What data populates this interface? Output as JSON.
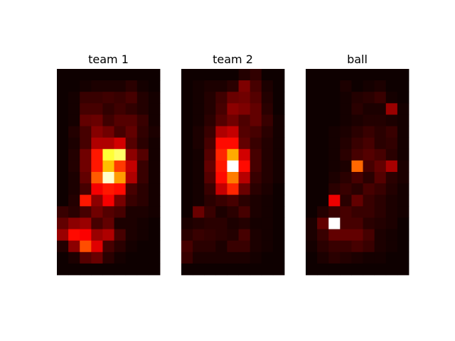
{
  "chart_data": [
    {
      "type": "heatmap",
      "title": "team 1",
      "colormap": "hot",
      "vmin": 0,
      "vmax": 1,
      "grid": false,
      "axes_visible": false,
      "values": [
        [
          0.02,
          0.02,
          0.02,
          0.02,
          0.02,
          0.02,
          0.02,
          0.02,
          0.02
        ],
        [
          0.02,
          0.02,
          0.03,
          0.04,
          0.04,
          0.04,
          0.06,
          0.03,
          0.02
        ],
        [
          0.02,
          0.03,
          0.08,
          0.08,
          0.09,
          0.08,
          0.1,
          0.05,
          0.03
        ],
        [
          0.02,
          0.03,
          0.1,
          0.1,
          0.07,
          0.09,
          0.07,
          0.05,
          0.03
        ],
        [
          0.02,
          0.03,
          0.14,
          0.15,
          0.09,
          0.12,
          0.12,
          0.08,
          0.03
        ],
        [
          0.02,
          0.05,
          0.1,
          0.19,
          0.16,
          0.1,
          0.14,
          0.07,
          0.04
        ],
        [
          0.02,
          0.04,
          0.1,
          0.25,
          0.25,
          0.3,
          0.12,
          0.06,
          0.03
        ],
        [
          0.02,
          0.05,
          0.16,
          0.4,
          0.8,
          0.85,
          0.2,
          0.12,
          0.03
        ],
        [
          0.02,
          0.05,
          0.16,
          0.4,
          0.65,
          0.45,
          0.28,
          0.08,
          0.03
        ],
        [
          0.02,
          0.04,
          0.14,
          0.5,
          0.95,
          0.6,
          0.25,
          0.08,
          0.03
        ],
        [
          0.02,
          0.04,
          0.1,
          0.35,
          0.4,
          0.38,
          0.1,
          0.06,
          0.03
        ],
        [
          0.02,
          0.05,
          0.4,
          0.2,
          0.35,
          0.17,
          0.08,
          0.06,
          0.03
        ],
        [
          0.08,
          0.06,
          0.1,
          0.16,
          0.12,
          0.1,
          0.04,
          0.04,
          0.03
        ],
        [
          0.14,
          0.2,
          0.22,
          0.1,
          0.14,
          0.04,
          0.04,
          0.03,
          0.02
        ],
        [
          0.22,
          0.38,
          0.36,
          0.22,
          0.25,
          0.1,
          0.04,
          0.03,
          0.02
        ],
        [
          0.05,
          0.2,
          0.48,
          0.32,
          0.1,
          0.06,
          0.03,
          0.02,
          0.02
        ],
        [
          0.02,
          0.04,
          0.12,
          0.15,
          0.06,
          0.03,
          0.02,
          0.02,
          0.02
        ],
        [
          0.02,
          0.02,
          0.02,
          0.02,
          0.02,
          0.02,
          0.02,
          0.02,
          0.02
        ]
      ]
    },
    {
      "type": "heatmap",
      "title": "team 2",
      "colormap": "hot",
      "vmin": 0,
      "vmax": 1,
      "grid": false,
      "axes_visible": false,
      "values": [
        [
          0.02,
          0.02,
          0.02,
          0.02,
          0.02,
          0.05,
          0.07,
          0.02,
          0.02
        ],
        [
          0.02,
          0.03,
          0.04,
          0.04,
          0.06,
          0.18,
          0.1,
          0.04,
          0.02
        ],
        [
          0.02,
          0.03,
          0.05,
          0.09,
          0.15,
          0.16,
          0.12,
          0.05,
          0.02
        ],
        [
          0.02,
          0.03,
          0.05,
          0.1,
          0.2,
          0.18,
          0.14,
          0.06,
          0.02
        ],
        [
          0.02,
          0.03,
          0.06,
          0.12,
          0.16,
          0.11,
          0.14,
          0.08,
          0.03
        ],
        [
          0.02,
          0.04,
          0.08,
          0.25,
          0.28,
          0.12,
          0.1,
          0.06,
          0.03
        ],
        [
          0.02,
          0.04,
          0.1,
          0.38,
          0.38,
          0.14,
          0.08,
          0.05,
          0.03
        ],
        [
          0.02,
          0.03,
          0.12,
          0.42,
          0.62,
          0.3,
          0.1,
          0.05,
          0.03
        ],
        [
          0.02,
          0.03,
          0.14,
          0.4,
          1.0,
          0.38,
          0.1,
          0.05,
          0.03
        ],
        [
          0.02,
          0.03,
          0.12,
          0.38,
          0.55,
          0.26,
          0.08,
          0.05,
          0.03
        ],
        [
          0.02,
          0.03,
          0.08,
          0.28,
          0.42,
          0.15,
          0.06,
          0.04,
          0.02
        ],
        [
          0.02,
          0.03,
          0.06,
          0.08,
          0.1,
          0.06,
          0.04,
          0.03,
          0.02
        ],
        [
          0.02,
          0.15,
          0.08,
          0.04,
          0.06,
          0.1,
          0.04,
          0.03,
          0.02
        ],
        [
          0.04,
          0.05,
          0.06,
          0.06,
          0.04,
          0.05,
          0.03,
          0.03,
          0.02
        ],
        [
          0.06,
          0.08,
          0.07,
          0.06,
          0.05,
          0.1,
          0.04,
          0.03,
          0.02
        ],
        [
          0.1,
          0.06,
          0.06,
          0.04,
          0.08,
          0.08,
          0.04,
          0.03,
          0.02
        ],
        [
          0.08,
          0.04,
          0.04,
          0.04,
          0.04,
          0.04,
          0.03,
          0.02,
          0.02
        ],
        [
          0.02,
          0.02,
          0.02,
          0.02,
          0.02,
          0.02,
          0.02,
          0.02,
          0.02
        ]
      ]
    },
    {
      "type": "heatmap",
      "title": "ball",
      "colormap": "hot",
      "vmin": 0,
      "vmax": 1,
      "grid": false,
      "axes_visible": false,
      "values": [
        [
          0.02,
          0.02,
          0.02,
          0.02,
          0.02,
          0.02,
          0.02,
          0.02,
          0.02
        ],
        [
          0.02,
          0.02,
          0.02,
          0.04,
          0.02,
          0.03,
          0.04,
          0.02,
          0.02
        ],
        [
          0.02,
          0.02,
          0.02,
          0.03,
          0.05,
          0.06,
          0.08,
          0.03,
          0.02
        ],
        [
          0.02,
          0.02,
          0.02,
          0.03,
          0.06,
          0.04,
          0.04,
          0.22,
          0.03
        ],
        [
          0.02,
          0.02,
          0.02,
          0.03,
          0.04,
          0.05,
          0.05,
          0.04,
          0.03
        ],
        [
          0.02,
          0.02,
          0.03,
          0.04,
          0.06,
          0.08,
          0.06,
          0.08,
          0.03
        ],
        [
          0.02,
          0.02,
          0.03,
          0.05,
          0.08,
          0.1,
          0.06,
          0.07,
          0.03
        ],
        [
          0.02,
          0.02,
          0.03,
          0.06,
          0.1,
          0.12,
          0.1,
          0.06,
          0.03
        ],
        [
          0.02,
          0.02,
          0.03,
          0.04,
          0.52,
          0.1,
          0.14,
          0.24,
          0.04
        ],
        [
          0.02,
          0.02,
          0.04,
          0.06,
          0.1,
          0.06,
          0.12,
          0.06,
          0.04
        ],
        [
          0.02,
          0.02,
          0.06,
          0.08,
          0.06,
          0.1,
          0.08,
          0.05,
          0.03
        ],
        [
          0.02,
          0.02,
          0.34,
          0.06,
          0.14,
          0.08,
          0.06,
          0.04,
          0.03
        ],
        [
          0.02,
          0.05,
          0.08,
          0.1,
          0.08,
          0.08,
          0.06,
          0.04,
          0.03
        ],
        [
          0.04,
          0.14,
          1.0,
          0.1,
          0.1,
          0.06,
          0.05,
          0.04,
          0.02
        ],
        [
          0.04,
          0.08,
          0.14,
          0.14,
          0.14,
          0.1,
          0.04,
          0.03,
          0.02
        ],
        [
          0.03,
          0.06,
          0.08,
          0.08,
          0.1,
          0.08,
          0.04,
          0.03,
          0.02
        ],
        [
          0.02,
          0.04,
          0.06,
          0.05,
          0.04,
          0.03,
          0.03,
          0.02,
          0.02
        ],
        [
          0.02,
          0.02,
          0.02,
          0.02,
          0.02,
          0.02,
          0.02,
          0.02,
          0.02
        ]
      ]
    }
  ]
}
